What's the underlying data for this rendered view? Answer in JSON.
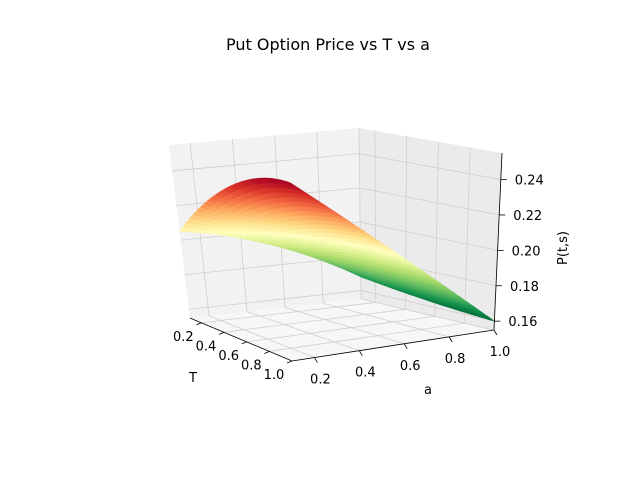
{
  "chart_data": {
    "type": "surface3d",
    "title": "Put Option Price vs T vs a",
    "xlabel": "T",
    "ylabel": "a",
    "zlabel": "P(t,s)",
    "x_ticks": [
      "0.2",
      "0.4",
      "0.6",
      "0.8",
      "1.0"
    ],
    "y_ticks": [
      "0.2",
      "0.4",
      "0.6",
      "0.8",
      "1.0"
    ],
    "z_ticks": [
      "0.16",
      "0.18",
      "0.20",
      "0.22",
      "0.24"
    ],
    "xlim": [
      0.1,
      1.0
    ],
    "ylim": [
      0.1,
      1.0
    ],
    "zlim": [
      0.155,
      0.255
    ],
    "colormap": "RdYlGn",
    "grid": true,
    "surface_samples": {
      "T": [
        0.1,
        0.55,
        1.0
      ],
      "a": [
        0.1,
        0.55,
        1.0
      ],
      "P": [
        [
          0.205,
          0.192,
          0.168
        ],
        [
          0.238,
          0.203,
          0.163
        ],
        [
          0.245,
          0.205,
          0.16
        ]
      ]
    }
  },
  "colors": {
    "pane_left": "#f2f2f2",
    "pane_back": "#ebebeb",
    "pane_floor": "#f7f7f7",
    "grid": "#cfcfcf",
    "colormap_stops": [
      "#a50026",
      "#d73027",
      "#f46d43",
      "#fdae61",
      "#fee08b",
      "#ffffbf",
      "#d9ef8b",
      "#a6d96a",
      "#66bd63",
      "#1a9850",
      "#006837"
    ]
  }
}
